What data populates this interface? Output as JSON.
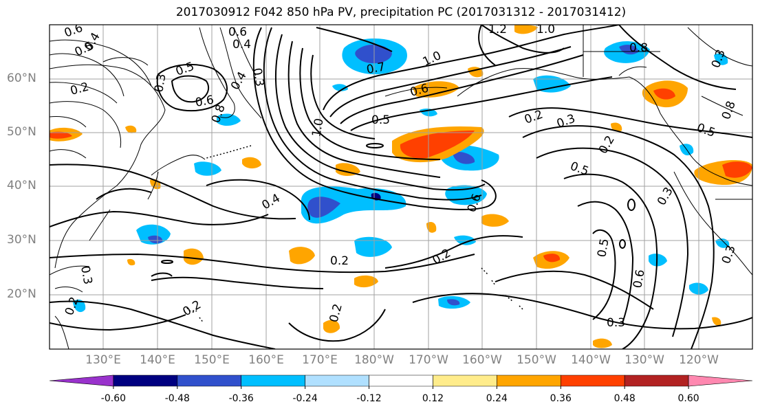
{
  "title": "2017030912 F042 850 hPa PV, precipitation PC (2017031312 - 2017031412)",
  "lat_labels": [
    "60°N",
    "50°N",
    "40°N",
    "30°N",
    "20°N"
  ],
  "lon_labels": [
    "130°E",
    "140°E",
    "150°E",
    "160°E",
    "170°E",
    "180°W",
    "170°W",
    "160°W",
    "150°W",
    "140°W",
    "130°W",
    "120°W"
  ],
  "contour_labels": [
    "0.6",
    "0.5",
    "0.4",
    "0.2",
    "0.3",
    "0.5",
    "0.6",
    "0.4",
    "0.6",
    "0.3",
    "0.4",
    "0.7",
    "1.0",
    "0.6",
    "0.5",
    "1.0",
    "0.8",
    "0.2",
    "0.3",
    "0.5",
    "0.4",
    "0.2",
    "0.2",
    "0.2",
    "0.3",
    "0.5",
    "0.6",
    "0.3",
    "0.2",
    "0.2",
    "0.2",
    "0.3",
    "1.2",
    "1.0",
    "0.8",
    "0.3",
    "0.6",
    "0.8",
    "0.5",
    "0.3"
  ],
  "colorbar": {
    "colors": [
      "#9932CC",
      "#000080",
      "#3050CC",
      "#00BFFF",
      "#B0E0FF",
      "#FFFFFF",
      "#FFEC8B",
      "#FFA500",
      "#FF4000",
      "#B22222",
      "#FF88B0"
    ],
    "tick_labels": [
      "-0.60",
      "-0.48",
      "-0.36",
      "-0.24",
      "-0.12",
      "0.12",
      "0.24",
      "0.36",
      "0.48",
      "0.60"
    ]
  },
  "fill_colors": {
    "neg_weak": "#00BFFF",
    "neg_mid": "#3050CC",
    "neg_strong": "#000080",
    "pos_weak": "#FFA500",
    "pos_mid": "#FF4000",
    "pos_pale": "#FFEC8B"
  }
}
